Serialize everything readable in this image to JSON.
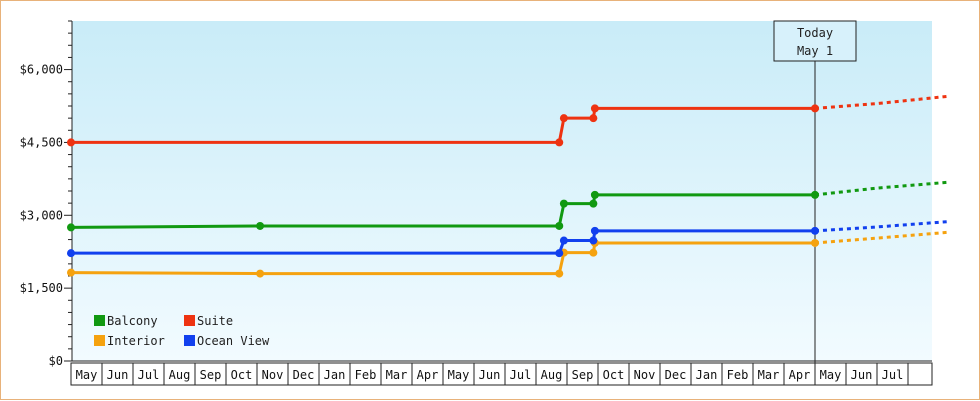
{
  "chart_data": {
    "type": "line",
    "y_ticks": [
      0,
      1500,
      3000,
      4500,
      6000
    ],
    "y_tick_labels": [
      "$0",
      "$1,500",
      "$3,000",
      "$4,500",
      "$6,000"
    ],
    "ylim": [
      0,
      7000
    ],
    "x_months": [
      "May",
      "Jun",
      "Jul",
      "Aug",
      "Sep",
      "Oct",
      "Nov",
      "Dec",
      "Jan",
      "Feb",
      "Mar",
      "Apr",
      "May",
      "Jun",
      "Jul",
      "Aug",
      "Sep",
      "Oct",
      "Nov",
      "Dec",
      "Jan",
      "Feb",
      "Mar",
      "Apr",
      "May",
      "Jun",
      "Jul"
    ],
    "today_marker": {
      "line1": "Today",
      "line2": "May 1",
      "x": 24
    },
    "legend_position": "bottom-left",
    "grid": false,
    "series": [
      {
        "name": "Balcony",
        "color": "#119911",
        "points": [
          [
            0,
            2750
          ],
          [
            6.1,
            2780
          ],
          [
            15.75,
            2780
          ],
          [
            15.9,
            3240
          ],
          [
            16.85,
            3240
          ],
          [
            16.9,
            3420
          ],
          [
            24,
            3420
          ]
        ],
        "forecast": [
          [
            24,
            3420
          ],
          [
            26,
            3560
          ],
          [
            28.3,
            3680
          ]
        ]
      },
      {
        "name": "Suite",
        "color": "#ee3311",
        "points": [
          [
            0,
            4500
          ],
          [
            15.75,
            4500
          ],
          [
            15.9,
            5000
          ],
          [
            16.85,
            5000
          ],
          [
            16.9,
            5200
          ],
          [
            24,
            5200
          ]
        ],
        "forecast": [
          [
            24,
            5200
          ],
          [
            26,
            5300
          ],
          [
            28.3,
            5450
          ]
        ]
      },
      {
        "name": "Interior",
        "color": "#f5a20f",
        "points": [
          [
            0,
            1820
          ],
          [
            6.1,
            1800
          ],
          [
            15.75,
            1800
          ],
          [
            15.9,
            2230
          ],
          [
            16.85,
            2230
          ],
          [
            16.9,
            2430
          ],
          [
            24,
            2430
          ]
        ],
        "forecast": [
          [
            24,
            2430
          ],
          [
            26,
            2530
          ],
          [
            28.3,
            2650
          ]
        ]
      },
      {
        "name": "Ocean View",
        "color": "#1140ee",
        "points": [
          [
            0,
            2220
          ],
          [
            15.75,
            2220
          ],
          [
            15.9,
            2480
          ],
          [
            16.85,
            2480
          ],
          [
            16.9,
            2680
          ],
          [
            24,
            2680
          ]
        ],
        "forecast": [
          [
            24,
            2680
          ],
          [
            26,
            2760
          ],
          [
            28.3,
            2870
          ]
        ]
      }
    ],
    "legend": [
      "Balcony",
      "Suite",
      "Interior",
      "Ocean View"
    ]
  }
}
